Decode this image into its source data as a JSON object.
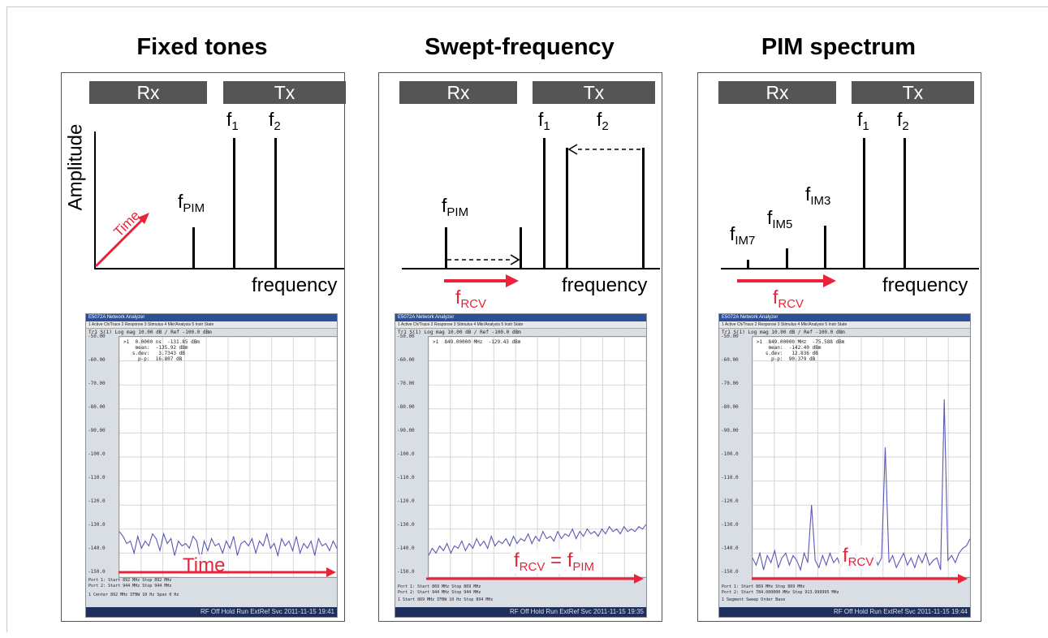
{
  "panels": [
    {
      "title": "Fixed tones",
      "rx": "Rx",
      "tx": "Tx",
      "f1": "f",
      "f1_sub": "1",
      "f2": "f",
      "f2_sub": "2",
      "ylabel": "Amplitude",
      "time_arrow": "Time",
      "pim": "f",
      "pim_sub": "PIM",
      "xlabel": "frequency",
      "screen": {
        "title": "E5072A Network Analyzer",
        "menu": "1 Active Ch/Trace   2 Response   3 Stimulus   4 Mkr/Analysis   5 Instr State",
        "trace": "Tr1 S(1) Log mag 10.00 dB / Ref -100.0 dBm",
        "marker": ">1  0.0000 ns  -131.85 dBm\n    mean:  -135.92 dBm\n   s.dev:   3.7343 dB\n     p-p:  16.807 dB",
        "yticks": [
          "-50.00",
          "-60.00",
          "-70.00",
          "-80.00",
          "-90.00",
          "-100.0",
          "-110.0",
          "-120.0",
          "-130.0",
          "-140.0",
          "-150.0"
        ],
        "overlay": "Time",
        "foot1": "Port 1: Start 892 MHz                                     Stop 892 MHz",
        "foot2": "Port 2: Start 944 MHz                                     Stop 944 MHz",
        "foot3": "1  Center 892 MHz              IFBW 10 Hz               Span 0 Hz",
        "status": "RF Off  Hold  Run  ExtRef  Svc  2011-11-15 19:41",
        "trace_values": [
          -131,
          -133,
          -136,
          -135,
          -140,
          -133,
          -138,
          -135,
          -137,
          -132,
          -134,
          -139,
          -132,
          -136,
          -134,
          -141,
          -135,
          -137,
          -136,
          -138,
          -133,
          -135,
          -143,
          -135,
          -139,
          -134,
          -137,
          -136,
          -140,
          -135,
          -138,
          -133,
          -141,
          -136,
          -135,
          -137,
          -134,
          -140,
          -135,
          -137,
          -132,
          -138,
          -136,
          -141,
          -134,
          -137,
          -135,
          -139,
          -133,
          -140,
          -136,
          -138,
          -135,
          -141,
          -134,
          -137,
          -136,
          -139,
          -135,
          -138
        ]
      }
    },
    {
      "title": "Swept-frequency",
      "rx": "Rx",
      "tx": "Tx",
      "f1": "f",
      "f1_sub": "1",
      "f2": "f",
      "f2_sub": "2",
      "pim": "f",
      "pim_sub": "PIM",
      "rcv": "f",
      "rcv_sub": "RCV",
      "xlabel": "frequency",
      "screen": {
        "title": "E5072A Network Analyzer",
        "menu": "1 Active Ch/Trace   2 Response   3 Stimulus   4 Mkr/Analysis   5 Instr State",
        "trace": "Tr1 S(1) Log mag 10.00 dB / Ref -100.0 dBm",
        "marker": ">1  849.00000 MHz  -129.43 dBm",
        "yticks": [
          "-50.00",
          "-60.00",
          "-70.00",
          "-80.00",
          "-90.00",
          "-100.0",
          "-110.0",
          "-120.0",
          "-130.0",
          "-140.0",
          "-150.0"
        ],
        "overlay_a": "f",
        "overlay_a_sub": "RCV",
        "overlay_eq": " = ",
        "overlay_b": "f",
        "overlay_b_sub": "PIM",
        "foot1": "Port 1: Start 869 MHz                                     Stop 869 MHz",
        "foot2": "Port 2: Start 944 MHz                                     Stop 944 MHz",
        "foot3": "1  Start 869 MHz               IFBW 10 Hz               Stop 894 MHz",
        "status": "RF Off  Hold  Run  ExtRef  Svc  2011-11-15 19:35",
        "trace_values": [
          -141,
          -138,
          -140,
          -137,
          -139,
          -136,
          -140,
          -137,
          -138,
          -135,
          -139,
          -136,
          -138,
          -134,
          -137,
          -135,
          -138,
          -133,
          -137,
          -135,
          -136,
          -134,
          -137,
          -133,
          -136,
          -134,
          -135,
          -132,
          -136,
          -133,
          -135,
          -131,
          -134,
          -133,
          -135,
          -131,
          -134,
          -132,
          -133,
          -130,
          -134,
          -131,
          -133,
          -130,
          -132,
          -131,
          -133,
          -130,
          -132,
          -129,
          -131,
          -130,
          -132,
          -129,
          -131,
          -130,
          -131,
          -129,
          -130,
          -128
        ]
      }
    },
    {
      "title": "PIM spectrum",
      "rx": "Rx",
      "tx": "Tx",
      "f1": "f",
      "f1_sub": "1",
      "f2": "f",
      "f2_sub": "2",
      "im3": "f",
      "im3_sub": "IM3",
      "im5": "f",
      "im5_sub": "IM5",
      "im7": "f",
      "im7_sub": "IM7",
      "rcv": "f",
      "rcv_sub": "RCV",
      "xlabel": "frequency",
      "screen": {
        "title": "E5072A Network Analyzer",
        "menu": "1 Active Ch/Trace   2 Response   3 Stimulus   4 Mkr/Analysis   5 Instr State",
        "trace": "Tr1 S(1) Log mag 10.00 dB / Ref -100.0 dBm",
        "marker": ">1  849.00000 MHz  -75.588 dBm\n    mean:  -142.40 dBm\n   s.dev:   12.836 dB\n     p-p:  90.379 dB",
        "yticks": [
          "-50.00",
          "-60.00",
          "-70.00",
          "-80.00",
          "-90.00",
          "-100.0",
          "-110.0",
          "-120.0",
          "-130.0",
          "-140.0",
          "-150.0"
        ],
        "overlay": "f",
        "overlay_sub": "RCV",
        "foot1": "Port 1: Start 869 MHz                                     Stop 869 MHz",
        "foot2": "Port 2: Start 784.000000 MHz                         Stop 913.999995 MHz",
        "foot3": "1  Segment Sweep                                            Order Base",
        "status": "RF Off  Hold  Run  ExtRef  Svc  2011-11-15 19:44",
        "trace_values": [
          -142,
          -145,
          -140,
          -147,
          -141,
          -144,
          -139,
          -146,
          -142,
          -140,
          -145,
          -141,
          -143,
          -147,
          -140,
          -144,
          -120,
          -143,
          -146,
          -141,
          -145,
          -140,
          -144,
          -142,
          -146,
          -141,
          -143,
          -145,
          -140,
          -146,
          -142,
          -144,
          -143,
          -141,
          -145,
          -142,
          -96,
          -144,
          -141,
          -146,
          -143,
          -140,
          -145,
          -142,
          -146,
          -141,
          -144,
          -140,
          -145,
          -143,
          -142,
          -147,
          -76,
          -143,
          -141,
          -144,
          -140,
          -138,
          -137,
          -134
        ]
      }
    }
  ],
  "colors": {
    "band": "#555555",
    "accent": "#e8233a",
    "trace": "#5b58b8"
  }
}
